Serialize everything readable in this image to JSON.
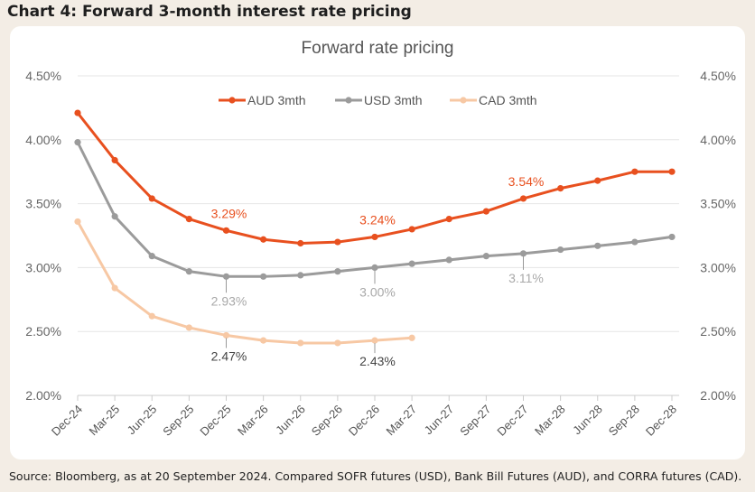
{
  "page_title": "Chart 4: Forward 3-month interest rate pricing",
  "source": "Source: Bloomberg, as at 20 September 2024. Compared SOFR futures (USD), Bank Bill Futures (AUD), and CORRA futures (CAD).",
  "colors": {
    "aud": "#e8501f",
    "usd": "#9b9b9b",
    "cad": "#f7c8a4",
    "grid": "#e6e6e6"
  },
  "chart_data": {
    "type": "line",
    "title": "Forward rate pricing",
    "xlabel": "",
    "ylabel": "",
    "ylim": [
      2.0,
      4.5
    ],
    "yticks": [
      "4.50%",
      "4.00%",
      "3.50%",
      "3.00%",
      "2.50%",
      "2.00%"
    ],
    "ytick_values": [
      4.5,
      4.0,
      3.5,
      3.0,
      2.5,
      2.0
    ],
    "categories": [
      "Dec-24",
      "Mar-25",
      "Jun-25",
      "Sep-25",
      "Dec-25",
      "Mar-26",
      "Jun-26",
      "Sep-26",
      "Dec-26",
      "Mar-27",
      "Jun-27",
      "Sep-27",
      "Dec-27",
      "Mar-28",
      "Jun-28",
      "Sep-28",
      "Dec-28"
    ],
    "grid": true,
    "legend_position": "top",
    "series": [
      {
        "name": "AUD 3mth",
        "key": "aud",
        "values": [
          4.21,
          3.84,
          3.54,
          3.38,
          3.29,
          3.22,
          3.19,
          3.2,
          3.24,
          3.3,
          3.38,
          3.44,
          3.54,
          3.62,
          3.68,
          3.75,
          3.75
        ]
      },
      {
        "name": "USD 3mth",
        "key": "usd",
        "values": [
          3.98,
          3.4,
          3.09,
          2.97,
          2.93,
          2.93,
          2.94,
          2.97,
          3.0,
          3.03,
          3.06,
          3.09,
          3.11,
          3.14,
          3.17,
          3.2,
          3.24
        ]
      },
      {
        "name": "CAD 3mth",
        "key": "cad",
        "values": [
          3.36,
          2.84,
          2.62,
          2.53,
          2.47,
          2.43,
          2.41,
          2.41,
          2.43,
          2.45,
          null,
          null,
          null,
          null,
          null,
          null,
          null
        ]
      }
    ],
    "annotations": [
      {
        "text": "3.29%",
        "series": "aud",
        "index": 4
      },
      {
        "text": "3.24%",
        "series": "aud",
        "index": 8
      },
      {
        "text": "3.54%",
        "series": "aud",
        "index": 12
      },
      {
        "text": "2.93%",
        "series": "usd",
        "index": 4
      },
      {
        "text": "3.00%",
        "series": "usd",
        "index": 8
      },
      {
        "text": "3.11%",
        "series": "usd",
        "index": 12
      },
      {
        "text": "2.47%",
        "series": "cad",
        "index": 4
      },
      {
        "text": "2.43%",
        "series": "cad",
        "index": 8
      }
    ]
  }
}
